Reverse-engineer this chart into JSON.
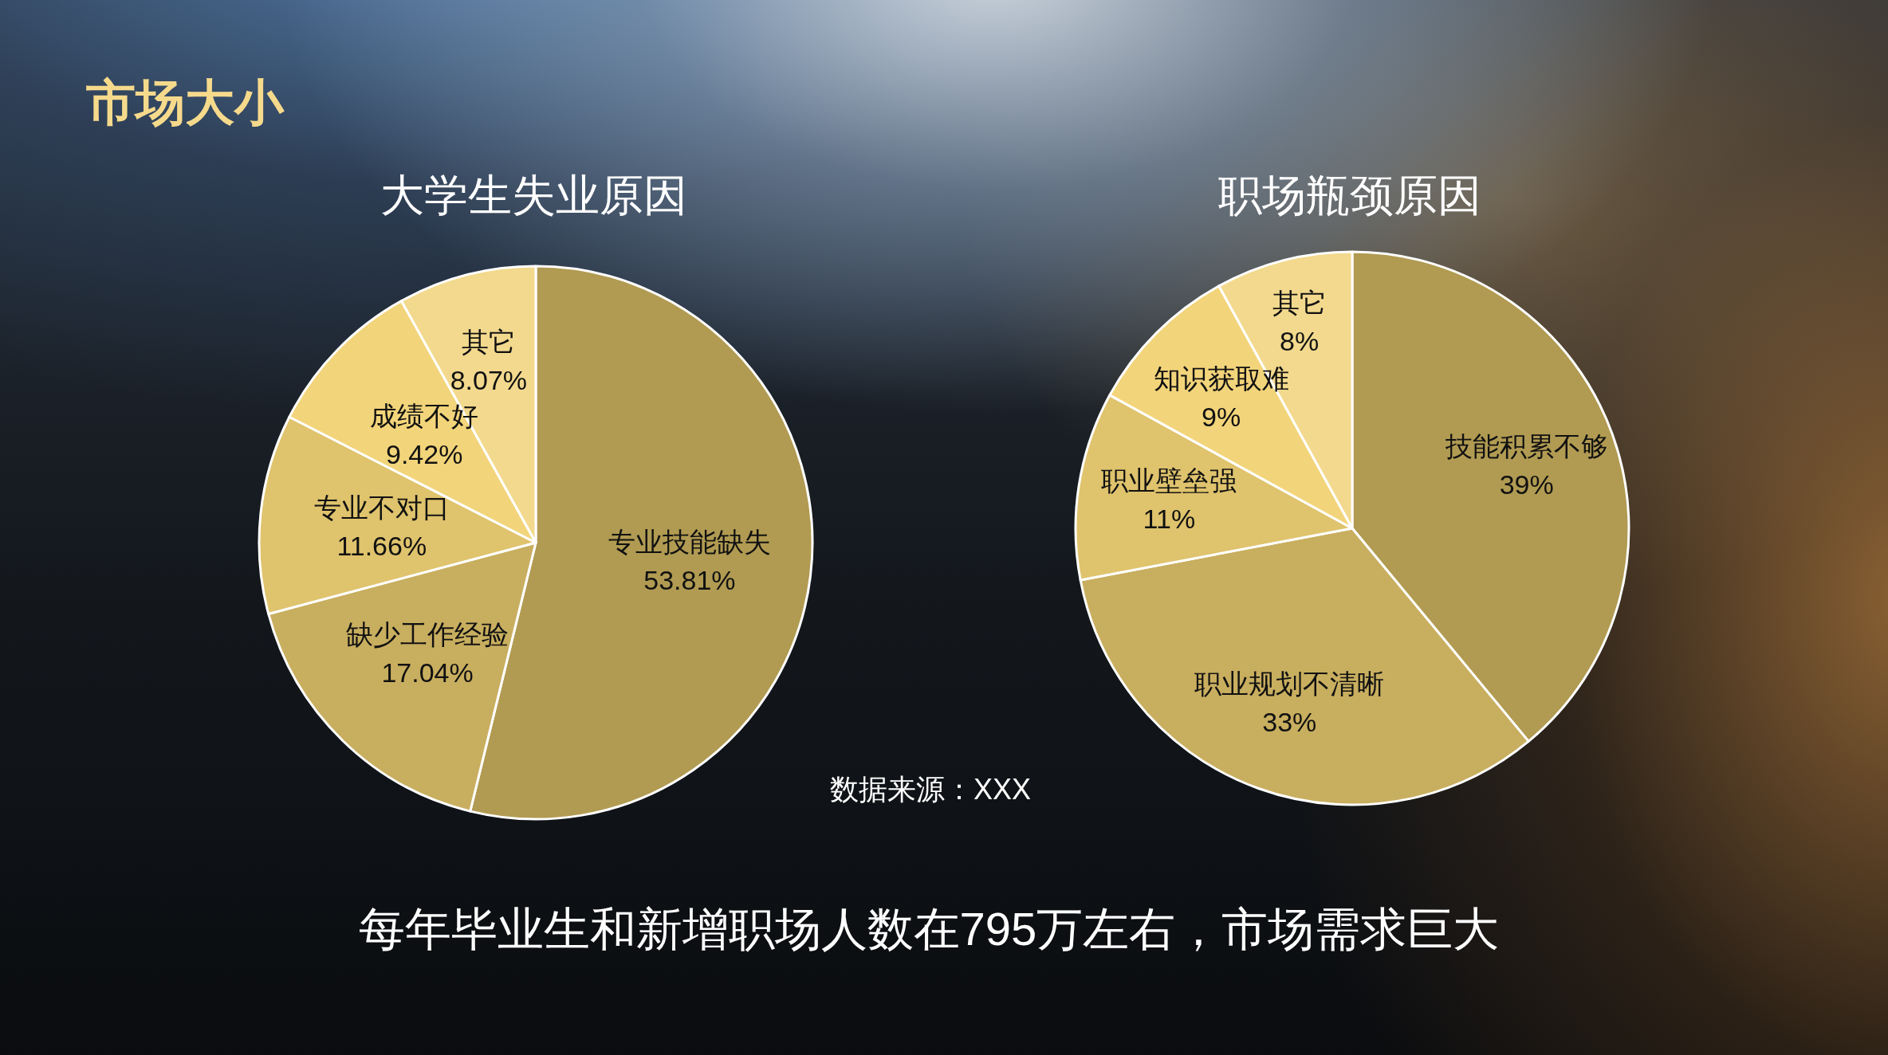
{
  "chart_data": [
    {
      "type": "pie",
      "title": "大学生失业原因",
      "categories": [
        "专业技能缺失",
        "缺少工作经验",
        "专业不对口",
        "成绩不好",
        "其它"
      ],
      "values": [
        53.81,
        17.04,
        11.66,
        9.42,
        8.07
      ],
      "value_labels": [
        "53.81%",
        "17.04%",
        "11.66%",
        "9.42%",
        "8.07%"
      ],
      "colors": [
        "#b19b52",
        "#c8ae5f",
        "#dfc36d",
        "#f2d47a",
        "#f2d98d"
      ],
      "annotations": [
        "市场大小",
        "数据来源：XXX",
        "每年毕业生和新增职场人数在795万左右，市场需求巨大"
      ]
    },
    {
      "type": "pie",
      "title": "职场瓶颈原因",
      "categories": [
        "技能积累不够",
        "职业规划不清晰",
        "职业壁垒强",
        "知识获取难",
        "其它"
      ],
      "values": [
        39,
        33,
        11,
        9,
        8
      ],
      "value_labels": [
        "39%",
        "33%",
        "11%",
        "9%",
        "8%"
      ],
      "colors": [
        "#b19b52",
        "#c8ae5f",
        "#dfc36d",
        "#f2d47a",
        "#f2d98d"
      ]
    }
  ]
}
